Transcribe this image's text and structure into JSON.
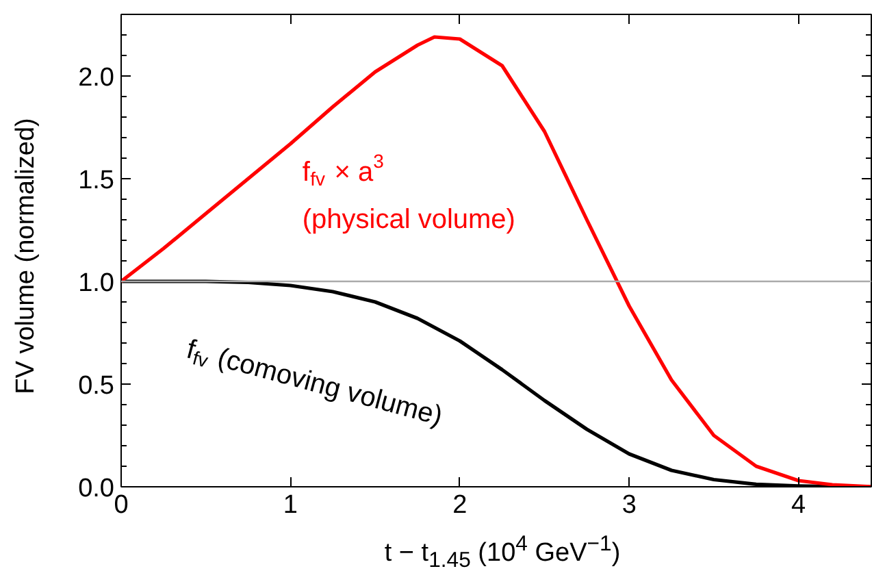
{
  "chart_data": {
    "type": "line",
    "xlabel": "t − t$_{1.45}$ (10$^{4}$ GeV$^{−1}$)",
    "ylabel": "FV volume (normalized)",
    "series": [
      {
        "color": "#000000",
        "x": [
          0,
          0.25,
          0.5,
          0.75,
          1,
          1.25,
          1.5,
          1.75,
          2,
          2.25,
          2.5,
          2.75,
          3,
          3.25,
          3.5,
          3.75,
          4,
          4.2,
          4.43
        ],
        "values": [
          1,
          1,
          1,
          0.995,
          0.98,
          0.95,
          0.9,
          0.82,
          0.71,
          0.57,
          0.42,
          0.28,
          0.16,
          0.08,
          0.035,
          0.012,
          0.004,
          0.001,
          0
        ]
      },
      {
        "color": "#ff0000",
        "x": [
          0,
          0.25,
          0.5,
          0.75,
          1,
          1.25,
          1.5,
          1.75,
          1.85,
          2,
          2.25,
          2.5,
          2.75,
          3,
          3.25,
          3.5,
          3.75,
          4,
          4.2,
          4.43
        ],
        "values": [
          1,
          1.16,
          1.33,
          1.5,
          1.67,
          1.85,
          2.02,
          2.15,
          2.19,
          2.18,
          2.05,
          1.73,
          1.3,
          0.88,
          0.52,
          0.25,
          0.1,
          0.03,
          0.01,
          0
        ]
      }
    ],
    "annotations": [
      "f$_{fv}$ × a$^{3}$",
      "(physical volume)",
      "f$_{fv}$ (comoving volume)"
    ],
    "ref_lines": [
      {
        "axis": "y",
        "value": 1,
        "color": "#aaaaaa"
      }
    ],
    "xlim": [
      0,
      4.43
    ],
    "ylim": [
      0,
      2.3
    ],
    "xticks": [
      0,
      1,
      2,
      3,
      4
    ],
    "yticks": [
      {
        "value": 0,
        "label": "0.0"
      },
      {
        "value": 0.5,
        "label": "0.5"
      },
      {
        "value": 1,
        "label": "1.0"
      },
      {
        "value": 1.5,
        "label": "1.5"
      },
      {
        "value": 2,
        "label": "2.0"
      }
    ],
    "grid": false,
    "marker": "none",
    "line_style": "solid"
  }
}
